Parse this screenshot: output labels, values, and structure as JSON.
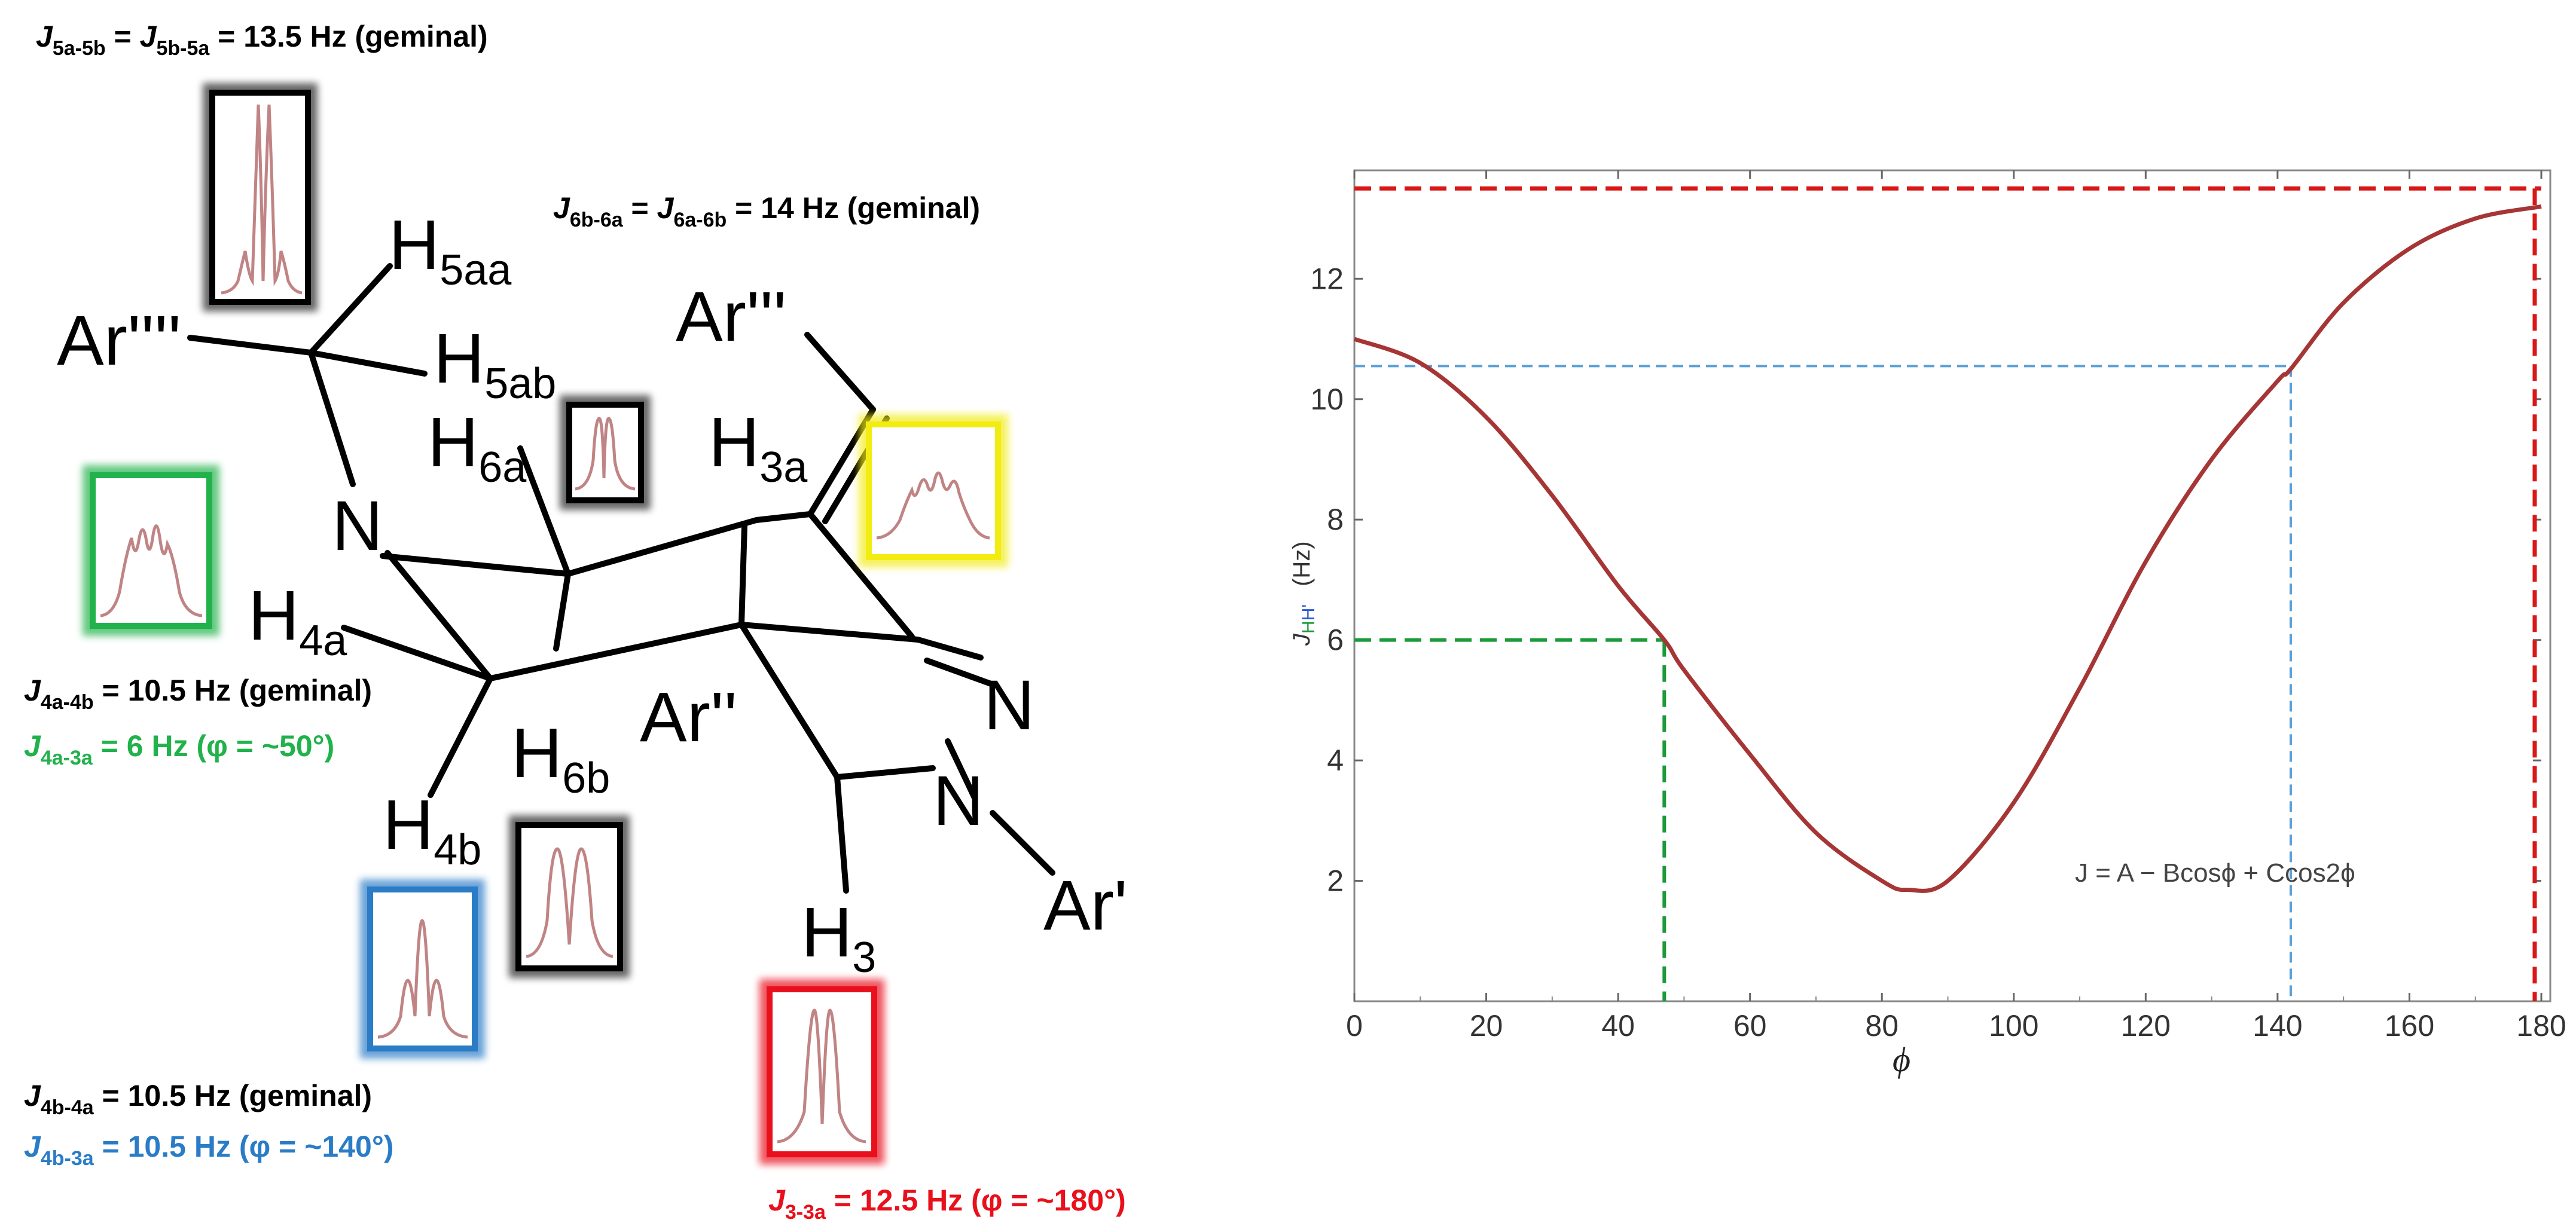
{
  "colors": {
    "black": "#000000",
    "green": "#21b24b",
    "blue": "#2a7cc7",
    "red": "#e8101b",
    "yellow": "#f2ec13",
    "curve": "#a63535",
    "spectrum": "#c08484",
    "green_dash": "#1b9a3a",
    "blue_dash": "#5aa0d8",
    "red_dash": "#d81818"
  },
  "annotations": {
    "j5": {
      "main": "J",
      "sub1": "5a-5b",
      "mid": " = ",
      "main2": "J",
      "sub2": "5b-5a",
      "tail": " = 13.5 Hz (geminal)"
    },
    "j6": {
      "main": "J",
      "sub1": "6b-6a",
      "mid": " = ",
      "main2": "J",
      "sub2": "6a-6b",
      "tail": " = 14 Hz (geminal)"
    },
    "j4a_gem": {
      "main": "J",
      "sub1": "4a-4b",
      "tail": " = 10.5 Hz (geminal)"
    },
    "j4a_3a": {
      "main": "J",
      "sub1": "4a-3a",
      "tail": " = 6 Hz (φ = ~50°)"
    },
    "j4b_gem": {
      "main": "J",
      "sub1": "4b-4a",
      "tail": " = 10.5 Hz (geminal)"
    },
    "j4b_3a": {
      "main": "J",
      "sub1": "4b-3a",
      "tail": " = 10.5 Hz (φ = ~140°)"
    },
    "j3": {
      "main": "J",
      "sub1": "3-3a",
      "tail": " = 12.5 Hz (φ = ~180°)"
    }
  },
  "atoms": {
    "h5aa": {
      "main": "H",
      "sub": "5aa"
    },
    "h5ab": {
      "main": "H",
      "sub": "5ab"
    },
    "ar4": {
      "main": "Ar''''"
    },
    "ar3": {
      "main": "Ar'''"
    },
    "h6a": {
      "main": "H",
      "sub": "6a"
    },
    "h3a": {
      "main": "H",
      "sub": "3a"
    },
    "n1": {
      "main": "N"
    },
    "h4a": {
      "main": "H",
      "sub": "4a"
    },
    "h6b": {
      "main": "H",
      "sub": "6b"
    },
    "ar2": {
      "main": "Ar''"
    },
    "n2": {
      "main": "N"
    },
    "n3": {
      "main": "N"
    },
    "h4b": {
      "main": "H",
      "sub": "4b"
    },
    "h3": {
      "main": "H",
      "sub": "3"
    },
    "ar1": {
      "main": "Ar'"
    }
  },
  "chart_data": {
    "type": "line",
    "x_ticks": [
      "0",
      "20",
      "40",
      "60",
      "80",
      "100",
      "120",
      "140",
      "160",
      "180"
    ],
    "y_ticks": [
      "2",
      "4",
      "6",
      "8",
      "10",
      "12"
    ],
    "xlim": [
      0,
      180
    ],
    "ylim": [
      0,
      13.8
    ],
    "xlabel": "ϕ",
    "ylabel": {
      "main": "J",
      "sub_h1": "H",
      "sub_h2": "H'",
      "unit": "(Hz)"
    },
    "equation": "J = A − Bcosϕ + Ccos2ϕ",
    "series": [
      {
        "x": [
          0,
          10,
          20,
          30,
          40,
          47,
          50,
          60,
          70,
          80,
          84,
          90,
          100,
          110,
          120,
          130,
          140,
          142,
          150,
          160,
          170,
          180
        ],
        "y": [
          11.0,
          10.6,
          9.7,
          8.4,
          6.9,
          6.0,
          5.5,
          4.1,
          2.8,
          2.0,
          1.85,
          2.0,
          3.3,
          5.2,
          7.3,
          9.0,
          10.3,
          10.5,
          11.6,
          12.5,
          13.0,
          13.2
        ]
      }
    ],
    "reference_lines": [
      {
        "color": "green",
        "x": 47,
        "y": 6.0
      },
      {
        "color": "blue",
        "x": 142,
        "y": 10.55
      },
      {
        "color": "red",
        "x": 179,
        "y": 13.5
      }
    ]
  }
}
